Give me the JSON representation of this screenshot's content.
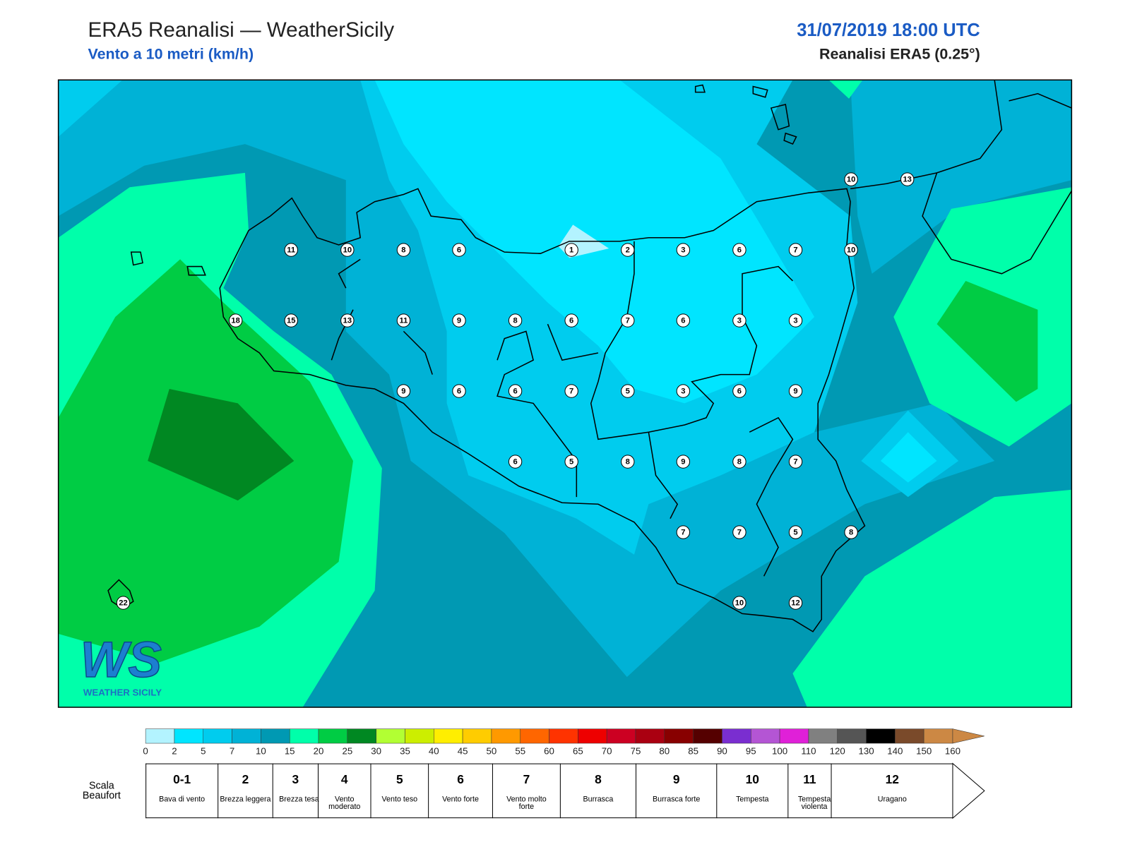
{
  "header": {
    "title": "ERA5 Reanalisi — WeatherSicily",
    "subtitle": "Vento a 10 metri (km/h)",
    "datetime": "31/07/2019 18:00 UTC",
    "source": "Reanalisi ERA5 (0.25°)"
  },
  "map": {
    "stations": [
      10,
      13,
      11,
      10,
      8,
      6,
      1,
      2,
      3,
      6,
      7,
      10,
      18,
      15,
      13,
      11,
      9,
      8,
      6,
      7,
      6,
      3,
      3,
      9,
      6,
      6,
      7,
      5,
      3,
      6,
      9,
      6,
      5,
      8,
      9,
      8,
      7,
      7,
      7,
      5,
      8,
      10,
      12,
      22
    ]
  },
  "logo": {
    "mark": "WS",
    "name": "WEATHER SICILY"
  },
  "colorbar": {
    "ticks": [
      0,
      2,
      5,
      7,
      10,
      15,
      20,
      25,
      30,
      35,
      40,
      45,
      50,
      55,
      60,
      65,
      70,
      75,
      80,
      85,
      90,
      95,
      100,
      110,
      120,
      130,
      140,
      150,
      160
    ],
    "colors": [
      "#b3f3ff",
      "#00e5ff",
      "#00ccee",
      "#00b2d6",
      "#0099b3",
      "#00ffaa",
      "#00cc44",
      "#008822",
      "#b2ff33",
      "#ccee00",
      "#ffee00",
      "#ffcc00",
      "#ff9900",
      "#ff6600",
      "#ff3300",
      "#ee0000",
      "#cc0022",
      "#aa0011",
      "#880000",
      "#550000",
      "#7a2ed0",
      "#b455d4",
      "#e020d8",
      "#808080",
      "#555555",
      "#000000",
      "#7a4a2a",
      "#cc8844"
    ]
  },
  "beaufort": {
    "title": "Scala Beaufort",
    "classes": [
      {
        "force": "0-1",
        "label": "Bava di vento"
      },
      {
        "force": "2",
        "label": "Brezza leggera"
      },
      {
        "force": "3",
        "label": "Brezza tesa"
      },
      {
        "force": "4",
        "label": "Vento moderato"
      },
      {
        "force": "5",
        "label": "Vento teso"
      },
      {
        "force": "6",
        "label": "Vento forte"
      },
      {
        "force": "7",
        "label": "Vento molto forte"
      },
      {
        "force": "8",
        "label": "Burrasca"
      },
      {
        "force": "9",
        "label": "Burrasca forte"
      },
      {
        "force": "10",
        "label": "Tempesta"
      },
      {
        "force": "11",
        "label": "Tempesta violenta"
      },
      {
        "force": "12",
        "label": "Uragano"
      }
    ]
  }
}
